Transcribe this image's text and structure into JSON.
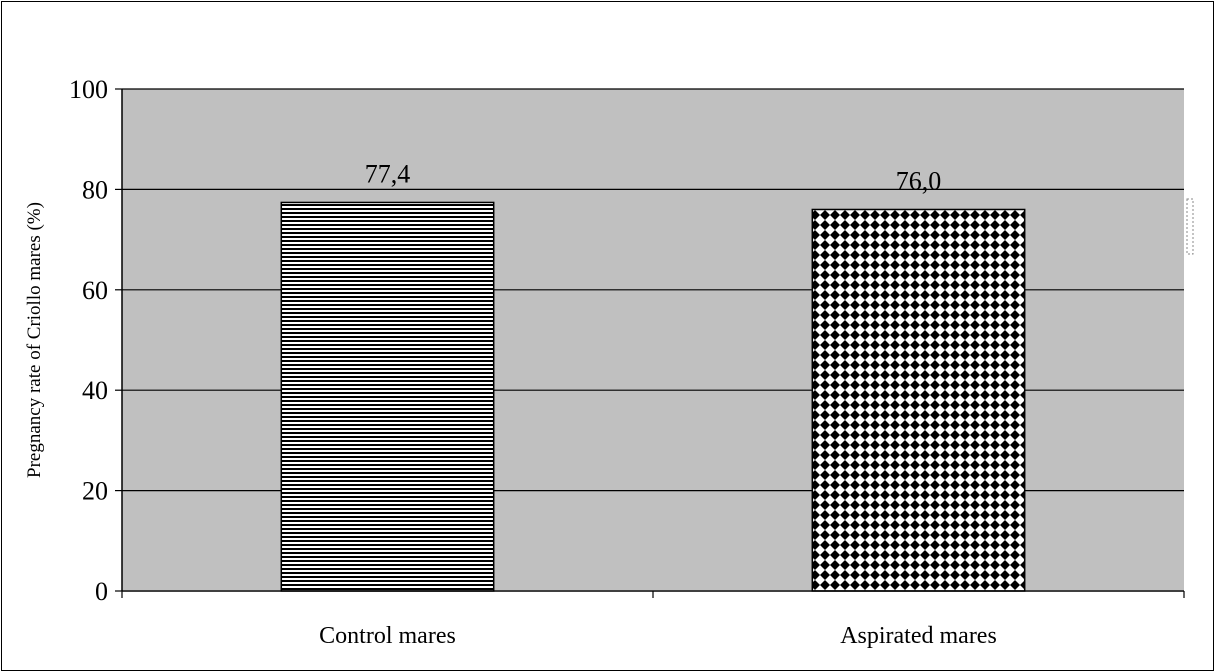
{
  "chart_data": {
    "type": "bar",
    "title": "",
    "xlabel": "",
    "ylabel": "Pregnancy rate of Criollo mares (%)",
    "categories": [
      "Control mares",
      "Aspirated mares"
    ],
    "values": [
      77.4,
      76.0
    ],
    "data_labels": [
      "77,4",
      "76,0"
    ],
    "ylim": [
      0,
      100
    ],
    "yticks": [
      0,
      20,
      40,
      60,
      80,
      100
    ],
    "ytick_labels": [
      "0",
      "20",
      "40",
      "60",
      "80",
      "100"
    ],
    "grid": true,
    "plot_background": "#c0c0c0",
    "bar_patterns": [
      "horizontal-lines",
      "diamond-checker"
    ],
    "bar_colors": [
      "#000000",
      "#000000"
    ]
  }
}
